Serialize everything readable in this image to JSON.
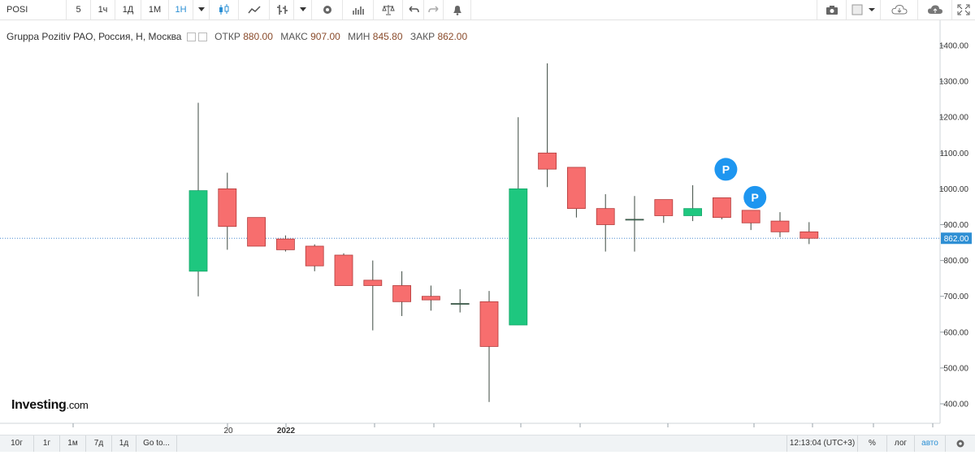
{
  "toolbar": {
    "symbol": "POSI",
    "intervals": [
      "5",
      "1ч",
      "1Д",
      "1М",
      "1Н"
    ],
    "active_interval": "1Н"
  },
  "legend": {
    "title": "Gruppa Pozitiv PAO, Россия, Н, Москва",
    "open_label": "ОТКР",
    "open_value": "880.00",
    "high_label": "МАКС",
    "high_value": "907.00",
    "low_label": "МИН",
    "low_value": "845.80",
    "close_label": "ЗАКР",
    "close_value": "862.00"
  },
  "logo": {
    "name": "Investing",
    "suffix": ".com"
  },
  "bottombar": {
    "ranges": [
      "10г",
      "1г",
      "1м",
      "7д",
      "1д"
    ],
    "goto": "Go to...",
    "time": "12:13:04 (UTC+3)",
    "percent": "%",
    "log": "лог",
    "auto": "авто"
  },
  "colors": {
    "up": "#1ec77f",
    "down": "#f76e6e",
    "wick": "#3a4b3f",
    "price_label_bg": "#2e8fd4",
    "marker": "#1e96f0"
  },
  "chart_data": {
    "type": "candlestick",
    "ylim": [
      350,
      1450
    ],
    "yticks": [
      "400.00",
      "500.00",
      "600.00",
      "700.00",
      "800.00",
      "900.00",
      "1000.00",
      "1100.00",
      "1200.00",
      "1300.00",
      "1400.00"
    ],
    "xtick_labels": [
      "20",
      "2022"
    ],
    "last_price": "862.00",
    "candles": [
      {
        "o": 770,
        "h": 1240,
        "l": 700,
        "c": 995
      },
      {
        "o": 1000,
        "h": 1045,
        "l": 830,
        "c": 895
      },
      {
        "o": 920,
        "h": 920,
        "l": 840,
        "c": 840
      },
      {
        "o": 860,
        "h": 870,
        "l": 825,
        "c": 830
      },
      {
        "o": 840,
        "h": 845,
        "l": 770,
        "c": 785
      },
      {
        "o": 815,
        "h": 820,
        "l": 730,
        "c": 730
      },
      {
        "o": 745,
        "h": 800,
        "l": 605,
        "c": 730
      },
      {
        "o": 730,
        "h": 770,
        "l": 645,
        "c": 685
      },
      {
        "o": 700,
        "h": 730,
        "l": 660,
        "c": 690
      },
      {
        "o": 680,
        "h": 720,
        "l": 655,
        "c": 680
      },
      {
        "o": 685,
        "h": 715,
        "l": 405,
        "c": 560
      },
      {
        "o": 620,
        "h": 1200,
        "l": 620,
        "c": 1000
      },
      {
        "o": 1100,
        "h": 1350,
        "l": 1005,
        "c": 1055
      },
      {
        "o": 1060,
        "h": 1060,
        "l": 920,
        "c": 945
      },
      {
        "o": 945,
        "h": 985,
        "l": 825,
        "c": 900
      },
      {
        "o": 915,
        "h": 980,
        "l": 825,
        "c": 915
      },
      {
        "o": 970,
        "h": 970,
        "l": 905,
        "c": 925
      },
      {
        "o": 925,
        "h": 1010,
        "l": 910,
        "c": 945
      },
      {
        "o": 975,
        "h": 975,
        "l": 915,
        "c": 920
      },
      {
        "o": 940,
        "h": 940,
        "l": 885,
        "c": 905
      },
      {
        "o": 910,
        "h": 935,
        "l": 865,
        "c": 880
      },
      {
        "o": 880,
        "h": 907,
        "l": 845.8,
        "c": 862
      }
    ],
    "markers": [
      {
        "candle": 18,
        "label": "P"
      },
      {
        "candle": 19,
        "label": "P"
      }
    ]
  }
}
